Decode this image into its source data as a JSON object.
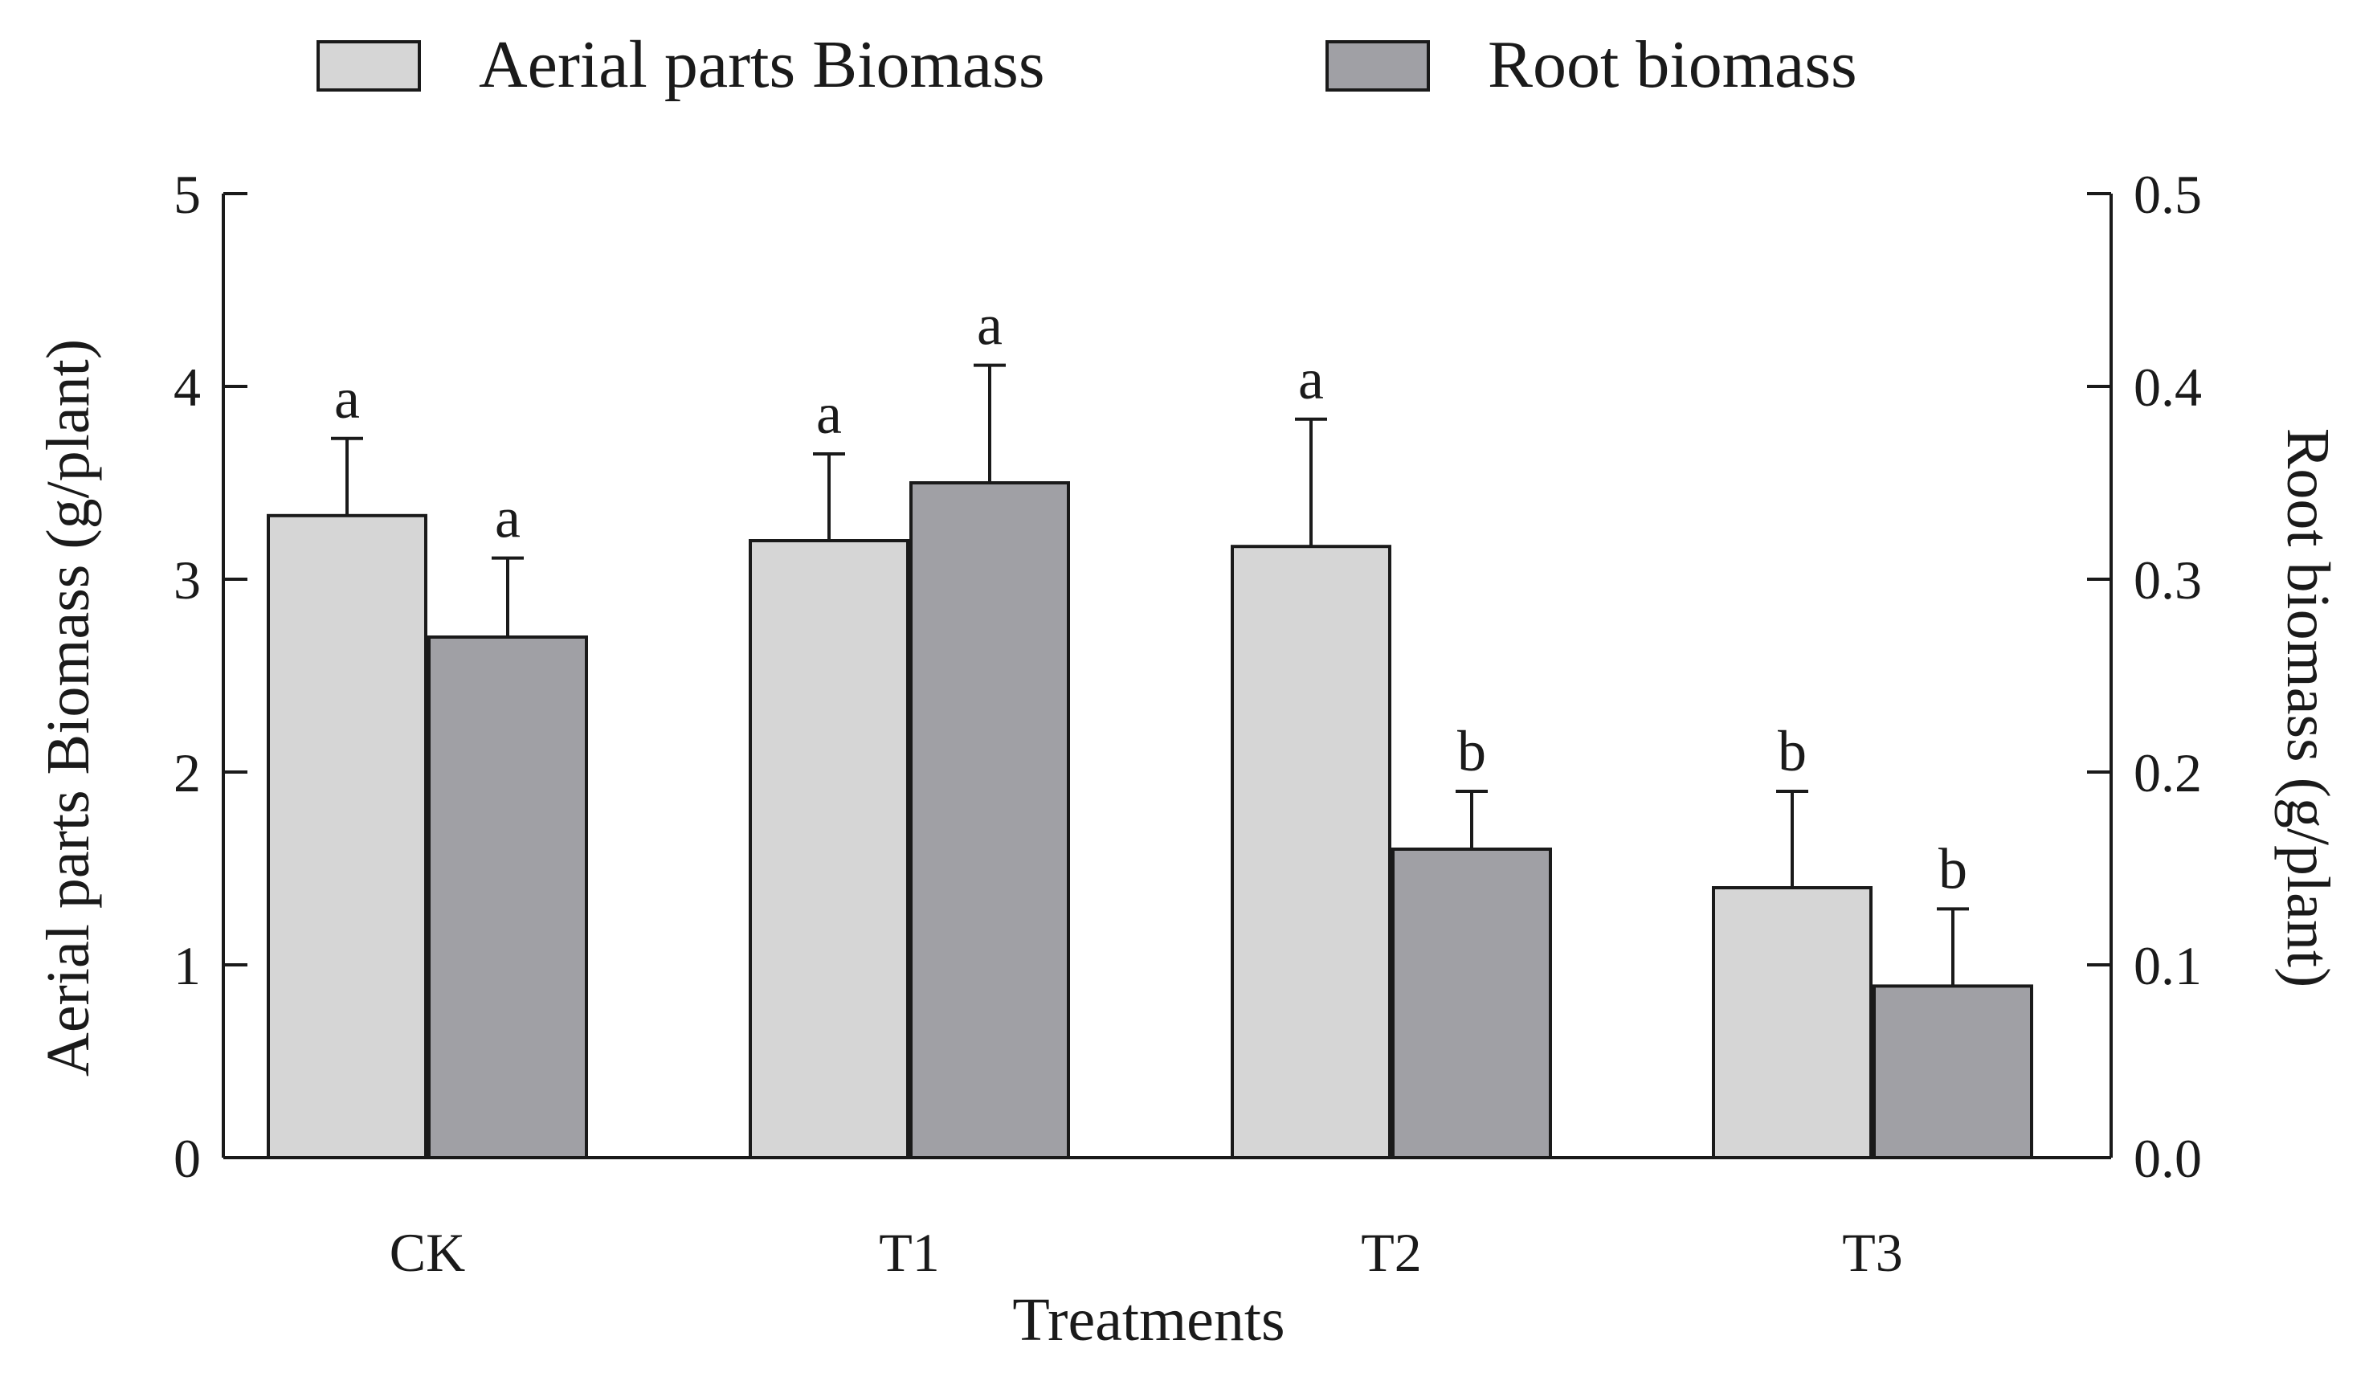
{
  "chart_data": {
    "type": "bar",
    "categories": [
      "CK",
      "T1",
      "T2",
      "T3"
    ],
    "series": [
      {
        "name": "Aerial parts Biomass",
        "axis": "left",
        "color": "#d6d6d6",
        "values": [
          3.33,
          3.2,
          3.17,
          1.4
        ],
        "errors": [
          0.4,
          0.45,
          0.66,
          0.5
        ],
        "significance": [
          "a",
          "a",
          "a",
          "b"
        ]
      },
      {
        "name": "Root biomass",
        "axis": "right",
        "color": "#a0a0a5",
        "values": [
          0.27,
          0.35,
          0.16,
          0.089
        ],
        "errors": [
          0.041,
          0.061,
          0.03,
          0.04
        ],
        "significance": [
          "a",
          "a",
          "b",
          "b"
        ]
      }
    ],
    "xlabel": "Treatments",
    "ylabel_left": "Aerial parts Biomass  (g/plant)",
    "ylabel_right": "Root biomass  (g/plant)",
    "ylim_left": [
      0,
      5
    ],
    "ylim_right": [
      0,
      0.5
    ],
    "yticks_left": [
      "0",
      "1",
      "2",
      "3",
      "4",
      "5"
    ],
    "yticks_right": [
      "0.0",
      "0.1",
      "0.2",
      "0.3",
      "0.4",
      "0.5"
    ],
    "legend_position": "top-center",
    "grid": false
  }
}
